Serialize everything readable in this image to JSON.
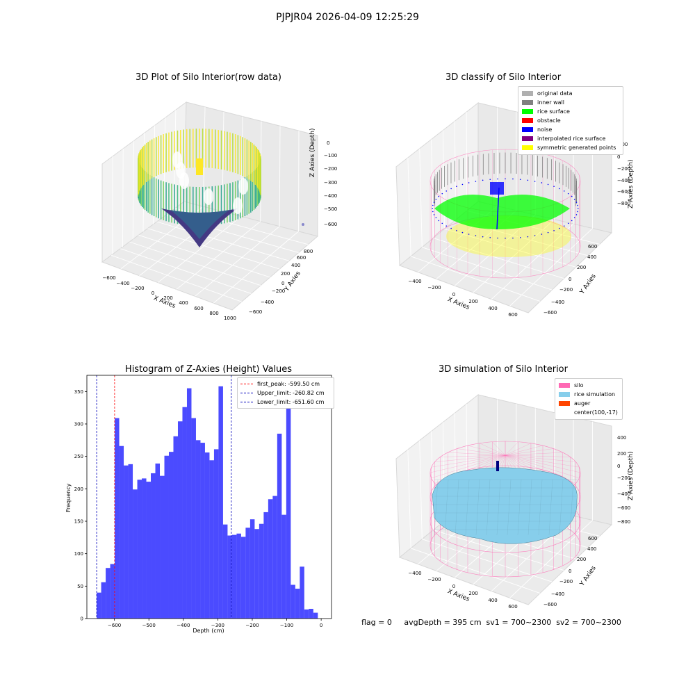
{
  "suptitle": "PJPJR04 2026-04-09 12:25:29",
  "footer_text": "flag = 0     avgDepth = 395 cm  sv1 = 700~2300  sv2 = 700~2300",
  "colors": {
    "hist_bar": "#4b4bff",
    "first_peak": "#ff0000",
    "limits": "#0000bb",
    "silo": "#ff69b4",
    "rice_sim": "#87ceeb",
    "auger": "#ff4500",
    "original": "#b0b0b0",
    "inner_wall": "#808080",
    "rice_surface": "#00ff00",
    "obstacle": "#ff0000",
    "noise": "#0000ff",
    "interp": "#800080",
    "symmetric": "#ffff00"
  },
  "chart_data": [
    {
      "type": "scatter",
      "title": "3D Plot of Silo Interior(row data)",
      "xlabel": "X Axies",
      "ylabel": "Y Axies",
      "zlabel": "Z Axies (Depth)",
      "x_ticks": [
        "−600",
        "−400",
        "−200",
        "0",
        "200",
        "400",
        "600",
        "800",
        "1000"
      ],
      "y_ticks": [
        "−600",
        "−400",
        "−200",
        "0",
        "200",
        "400",
        "600",
        "800"
      ],
      "z_ticks": [
        "0",
        "−100",
        "−200",
        "−300",
        "−400",
        "−500",
        "−600"
      ],
      "colormap": "viridis"
    },
    {
      "type": "scatter",
      "title": "3D classify of Silo Interior",
      "xlabel": "X Axies",
      "ylabel": "Y Axies",
      "zlabel": "Z Axies (Depth)",
      "x_ticks": [
        "−400",
        "−200",
        "0",
        "200",
        "400",
        "600"
      ],
      "y_ticks": [
        "−600",
        "−400",
        "−200",
        "0",
        "200",
        "400",
        "600"
      ],
      "z_ticks": [
        "200",
        "0",
        "−200",
        "−400",
        "−600",
        "−800"
      ],
      "z_ticks_partial_top": "00",
      "legend": [
        "original data",
        "inner wall",
        "rice surface",
        "obstacle",
        "noise",
        "interpolated rice surface",
        "symmetric generated points"
      ],
      "legend_position": "upper-right"
    },
    {
      "type": "bar",
      "title": "Histogram of Z-Axies (Height) Values",
      "xlabel": "Depth (cm)",
      "ylabel": "Frequency",
      "xlim": [
        -680,
        30
      ],
      "ylim": [
        0,
        375
      ],
      "x_ticks": [
        -600,
        -500,
        -400,
        -300,
        -200,
        -100,
        0
      ],
      "x_tick_labels": [
        "−600",
        "−500",
        "−400",
        "−300",
        "−200",
        "−100",
        "0"
      ],
      "y_ticks": [
        0,
        50,
        100,
        150,
        200,
        250,
        300,
        350
      ],
      "bin_start": -651.6,
      "bin_width": 13.1,
      "values": [
        40,
        56,
        78,
        84,
        309,
        266,
        236,
        238,
        199,
        214,
        216,
        211,
        224,
        239,
        220,
        251,
        257,
        281,
        304,
        326,
        355,
        309,
        275,
        271,
        256,
        244,
        261,
        358,
        145,
        128,
        129,
        131,
        126,
        140,
        153,
        138,
        146,
        164,
        184,
        189,
        285,
        160,
        352,
        52,
        46,
        80,
        14,
        15,
        9
      ],
      "lines": [
        {
          "label": "first_peak: -599.50 cm",
          "x": -599.5,
          "color": "#ff0000"
        },
        {
          "label": "Upper_limit: -260.82 cm",
          "x": -260.82,
          "color": "#0000bb"
        },
        {
          "label": "Lower_limit: -651.60 cm",
          "x": -651.6,
          "color": "#0000bb"
        }
      ],
      "grid": false,
      "legend_position": "upper-right"
    },
    {
      "type": "area",
      "title": "3D simulation of Silo Interior",
      "xlabel": "X Axies",
      "ylabel": "Y Axies",
      "zlabel": "Z Axies (Depth)",
      "x_ticks": [
        "−400",
        "−200",
        "0",
        "200",
        "400",
        "600"
      ],
      "y_ticks": [
        "−600",
        "−400",
        "−200",
        "0",
        "200",
        "400",
        "600"
      ],
      "z_ticks": [
        "400",
        "200",
        "0",
        "−200",
        "−400",
        "−600",
        "−800"
      ],
      "legend": [
        "silo",
        "rice simulation",
        "auger",
        "center(100,-17)"
      ],
      "legend_position": "upper-right"
    }
  ]
}
